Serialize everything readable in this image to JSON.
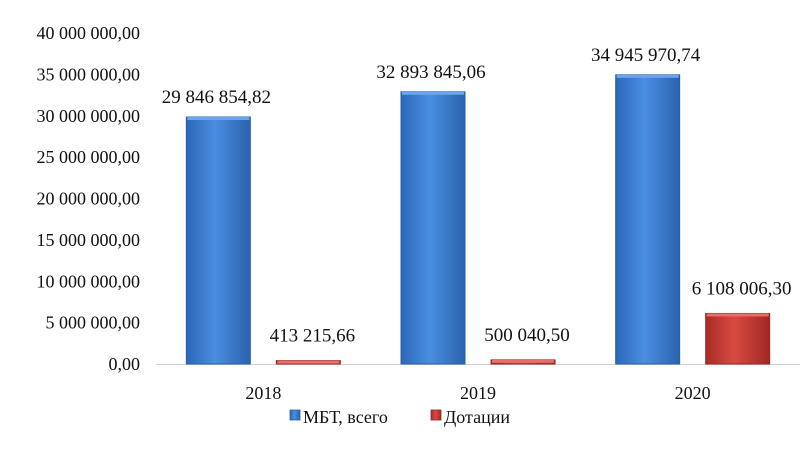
{
  "chart_data": {
    "type": "bar",
    "categories": [
      "2018",
      "2019",
      "2020"
    ],
    "series": [
      {
        "name": "МБТ, всего",
        "color": "#3f7fd3",
        "values": [
          29846854.82,
          32893845.06,
          34945970.74
        ],
        "labels": [
          "29 846 854,82",
          "32 893 845,06",
          "34 945 970,74"
        ]
      },
      {
        "name": "Дотации",
        "color": "#c43a34",
        "values": [
          413215.66,
          500040.5,
          6108006.3
        ],
        "labels": [
          "413 215,66",
          "500 040,50",
          "6 108 006,30"
        ]
      }
    ],
    "ylim": [
      0,
      40000000
    ],
    "y_ticks": [
      0,
      5000000,
      10000000,
      15000000,
      20000000,
      25000000,
      30000000,
      35000000,
      40000000
    ],
    "y_tick_labels": [
      "0,00",
      "5 000 000,00",
      "10 000 000,00",
      "15 000 000,00",
      "20 000 000,00",
      "25 000 000,00",
      "30 000 000,00",
      "35 000 000,00",
      "40 000 000,00"
    ],
    "grid": false,
    "legend_position": "bottom",
    "title": "",
    "xlabel": "",
    "ylabel": ""
  }
}
